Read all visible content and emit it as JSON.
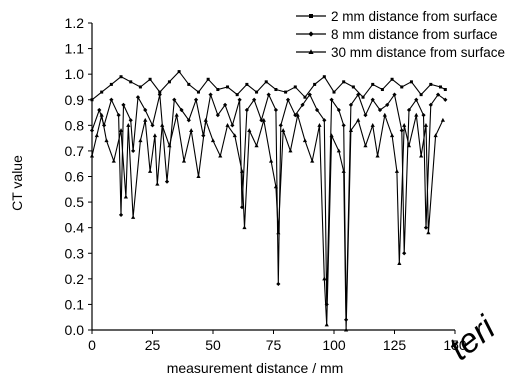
{
  "chart_data": {
    "type": "line",
    "xlabel": "measurement distance / mm",
    "ylabel": "CT value",
    "xlim": [
      0,
      150
    ],
    "ylim": [
      0.0,
      1.2
    ],
    "x_ticks": [
      "0",
      "25",
      "50",
      "75",
      "100",
      "125",
      "150"
    ],
    "y_ticks": [
      "0.0",
      "0.1",
      "0.2",
      "0.3",
      "0.4",
      "0.5",
      "0.6",
      "0.7",
      "0.8",
      "0.9",
      "1.0",
      "1.1",
      "1.2"
    ],
    "grid": false,
    "legend_position": "top-right",
    "watermark": "teri",
    "series": [
      {
        "name": "2 mm distance from surface",
        "marker": "square",
        "x": [
          0,
          4,
          8,
          12,
          16,
          20,
          24,
          28,
          32,
          36,
          40,
          44,
          48,
          52,
          56,
          60,
          64,
          68,
          72,
          76,
          80,
          84,
          88,
          92,
          96,
          100,
          104,
          108,
          112,
          116,
          120,
          124,
          128,
          132,
          136,
          140,
          144,
          146
        ],
        "values": [
          0.9,
          0.93,
          0.96,
          0.99,
          0.97,
          0.95,
          0.98,
          0.93,
          0.97,
          1.01,
          0.96,
          0.93,
          0.98,
          0.94,
          0.95,
          0.92,
          0.96,
          0.93,
          0.97,
          0.94,
          0.93,
          0.95,
          0.91,
          0.96,
          0.99,
          0.93,
          0.97,
          0.95,
          0.91,
          0.96,
          0.94,
          0.98,
          0.95,
          0.97,
          0.92,
          0.96,
          0.95,
          0.94
        ]
      },
      {
        "name": "8 mm distance from surface",
        "marker": "diamond",
        "x": [
          0,
          3,
          5,
          8,
          11,
          12,
          13,
          16,
          17,
          19,
          22,
          25,
          28,
          31,
          34,
          37,
          40,
          43,
          46,
          49,
          52,
          55,
          58,
          61,
          62,
          64,
          67,
          70,
          73,
          76,
          77,
          78,
          81,
          84,
          87,
          90,
          93,
          96,
          97,
          99,
          102,
          104,
          105,
          107,
          110,
          113,
          116,
          119,
          122,
          125,
          128,
          129,
          131,
          134,
          137,
          138,
          140,
          143,
          146
        ],
        "values": [
          0.78,
          0.86,
          0.8,
          0.9,
          0.84,
          0.45,
          0.88,
          0.82,
          0.7,
          0.91,
          0.86,
          0.8,
          0.92,
          0.58,
          0.9,
          0.86,
          0.82,
          0.9,
          0.76,
          0.92,
          0.84,
          0.88,
          0.8,
          0.9,
          0.48,
          0.86,
          0.9,
          0.82,
          0.92,
          0.86,
          0.18,
          0.8,
          0.9,
          0.84,
          0.88,
          0.92,
          0.86,
          0.82,
          0.1,
          0.9,
          0.86,
          0.8,
          0.04,
          0.88,
          0.92,
          0.84,
          0.9,
          0.86,
          0.88,
          0.92,
          0.78,
          0.3,
          0.86,
          0.9,
          0.84,
          0.4,
          0.88,
          0.92,
          0.9
        ]
      },
      {
        "name": "30 mm distance from surface",
        "marker": "triangle",
        "x": [
          0,
          2,
          4,
          6,
          9,
          12,
          14,
          15,
          17,
          20,
          22,
          24,
          26,
          27,
          29,
          32,
          35,
          38,
          41,
          44,
          47,
          50,
          53,
          56,
          59,
          62,
          63,
          65,
          68,
          71,
          74,
          76,
          77,
          79,
          82,
          85,
          88,
          91,
          94,
          96,
          97,
          99,
          102,
          104,
          105,
          107,
          110,
          113,
          116,
          118,
          121,
          124,
          126,
          127,
          129,
          131,
          134,
          136,
          138,
          139,
          142,
          145
        ],
        "values": [
          0.68,
          0.76,
          0.84,
          0.74,
          0.66,
          0.78,
          0.52,
          0.8,
          0.44,
          0.74,
          0.82,
          0.62,
          0.76,
          0.57,
          0.8,
          0.72,
          0.84,
          0.66,
          0.78,
          0.6,
          0.82,
          0.74,
          0.68,
          0.8,
          0.76,
          0.62,
          0.4,
          0.78,
          0.72,
          0.82,
          0.66,
          0.56,
          0.38,
          0.78,
          0.7,
          0.84,
          0.74,
          0.66,
          0.8,
          0.2,
          0.02,
          0.76,
          0.7,
          0.62,
          0.0,
          0.78,
          0.82,
          0.72,
          0.8,
          0.68,
          0.84,
          0.76,
          0.62,
          0.26,
          0.8,
          0.72,
          0.84,
          0.68,
          0.8,
          0.38,
          0.76,
          0.82
        ]
      }
    ]
  }
}
